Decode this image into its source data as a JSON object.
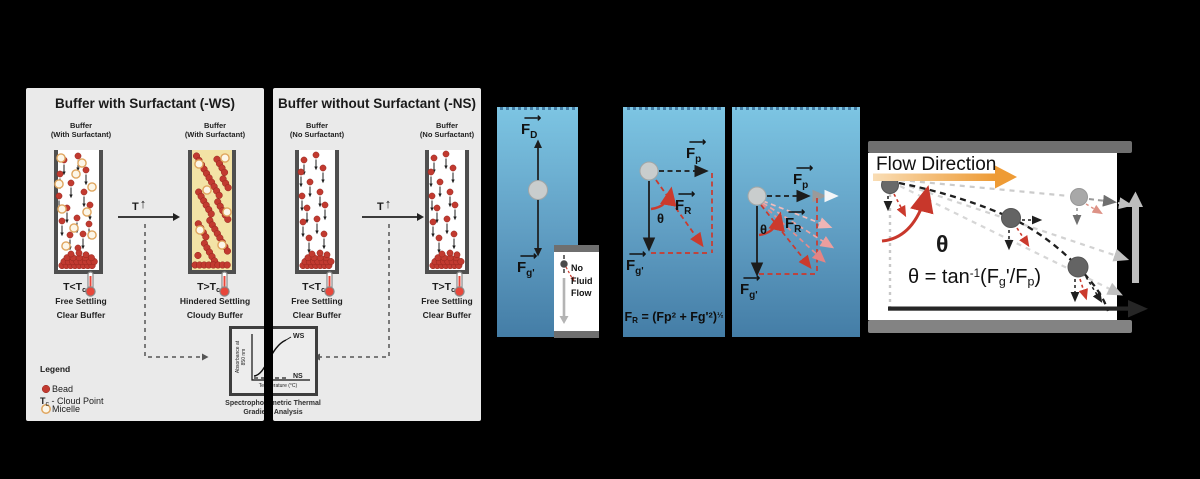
{
  "ws_panel": {
    "title": "Buffer with Surfactant (-WS)",
    "tube_label_l1": "Buffer",
    "tube_label_l2": "(With Surfactant)",
    "temp_low_main": "T<T",
    "temp_high_main": "T>T",
    "temp_sub": "c",
    "t_arrow": "T",
    "up_arrow": "↑",
    "state1_l1": "Free Settling",
    "state1_l2": "Clear Buffer",
    "state2_l1": "Hindered Settling",
    "state2_l2": "Cloudy Buffer"
  },
  "ns_panel": {
    "title": "Buffer without Surfactant (-NS)",
    "tube_label_l1": "Buffer",
    "tube_label_l2": "(No Surfactant)",
    "temp_low_main": "T<T",
    "temp_high_main": "T>T",
    "temp_sub": "c",
    "t_arrow": "T",
    "up_arrow": "↑",
    "state1_l1": "Free Settling",
    "state1_l2": "Clear Buffer",
    "state2_l1": "Free Settling",
    "state2_l2": "Clear Buffer"
  },
  "legend": {
    "title": "Legend",
    "bead": "Bead",
    "cloud_main": "T",
    "cloud_sub": "c",
    "cloud_rest": " - Cloud Point",
    "micelle": "Micelle"
  },
  "inset": {
    "ylabel_l1": "Absorbance at",
    "ylabel_l2": "850 nm",
    "xlabel": "Temperature (°C)",
    "ws": "WS",
    "ns": "NS",
    "caption_l1": "Spectrophotometric Thermal",
    "caption_l2": "Gradient Analysis"
  },
  "forces": {
    "vec": "⟶",
    "F": "F",
    "sub_D": "D",
    "sub_g": "g'",
    "sub_p": "p",
    "sub_R": "R",
    "theta": "θ",
    "noflow_l1": "No",
    "noflow_l2": "Fluid",
    "noflow_l3": "Flow",
    "fr_formula": {
      "base": "F",
      "sub": "R",
      "eq": " = (Fp",
      "exp1": "2",
      "mid": " + Fg'",
      "exp2": "2",
      "close": ")",
      "half": "½"
    }
  },
  "flow": {
    "title": "Flow Direction",
    "theta": "θ",
    "formula": {
      "lead": "θ = tan",
      "exp": "-1",
      "open": "(F",
      "sub_g": "g",
      "prime": "'",
      "mid": "/F",
      "sub_p": "p",
      "close": ")"
    }
  },
  "colors": {
    "bead_red": "#c23a30",
    "micelle_orange": "#dfa55e",
    "arrow_red": "#cb3a2d",
    "flow_orange": "#ed9a35",
    "water_top": "#7cc4e2",
    "water_bottom": "#447da6"
  }
}
